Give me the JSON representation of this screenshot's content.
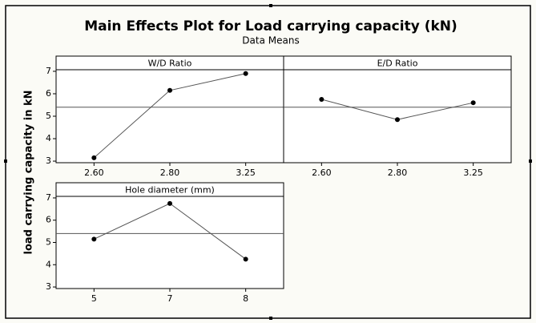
{
  "title": "Main Effects Plot for Load carrying capacity (kN)",
  "subtitle": "Data Means",
  "y_label": "load carrying capacity in kN",
  "chart_data": [
    {
      "type": "line",
      "title": "W/D Ratio",
      "categories": [
        "2.60",
        "2.80",
        "3.25"
      ],
      "values": [
        3.15,
        6.15,
        6.9
      ],
      "color": "#555555",
      "ylim": [
        2.93,
        7.07
      ],
      "yticks": [
        3,
        4,
        5,
        6,
        7
      ],
      "mean_line": 5.4
    },
    {
      "type": "line",
      "title": "E/D Ratio",
      "categories": [
        "2.60",
        "2.80",
        "3.25"
      ],
      "values": [
        5.75,
        4.85,
        5.6
      ],
      "color": "#555555",
      "ylim": [
        2.93,
        7.07
      ],
      "mean_line": 5.4
    },
    {
      "type": "line",
      "title": "Hole diameter (mm)",
      "categories": [
        "5",
        "7",
        "8"
      ],
      "values": [
        5.15,
        6.75,
        4.25
      ],
      "color": "#555555",
      "ylim": [
        2.93,
        7.07
      ],
      "yticks": [
        3,
        4,
        5,
        6,
        7
      ],
      "mean_line": 5.4
    }
  ]
}
